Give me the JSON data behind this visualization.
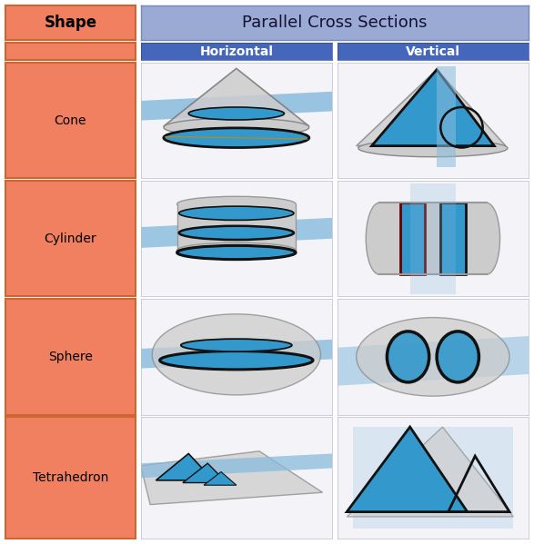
{
  "title": "Parallel Cross Sections",
  "col_headers": [
    "Horizontal",
    "Vertical"
  ],
  "row_labels": [
    "Cone",
    "Cylinder",
    "Sphere",
    "Tetrahedron"
  ],
  "shape_bg": "#F08060",
  "shape_bg_gradient_top": "#F09070",
  "shape_bg_gradient_bot": "#E06040",
  "title_bg": "#9BAAD4",
  "subhdr_bg": "#4466BB",
  "subhdr_text": "#FFFFFF",
  "cell_bg": "#E8EEF4",
  "white_bg": "#F4F4F8",
  "blue_fill": "#3399CC",
  "blue_plane": "#88BBDD",
  "gray_shape": "#AAAAAA",
  "gray_light": "#CCCCCC",
  "dark_line": "#111111",
  "dark_red": "#660000",
  "figsize": [
    5.87,
    5.99
  ],
  "dpi": 100
}
